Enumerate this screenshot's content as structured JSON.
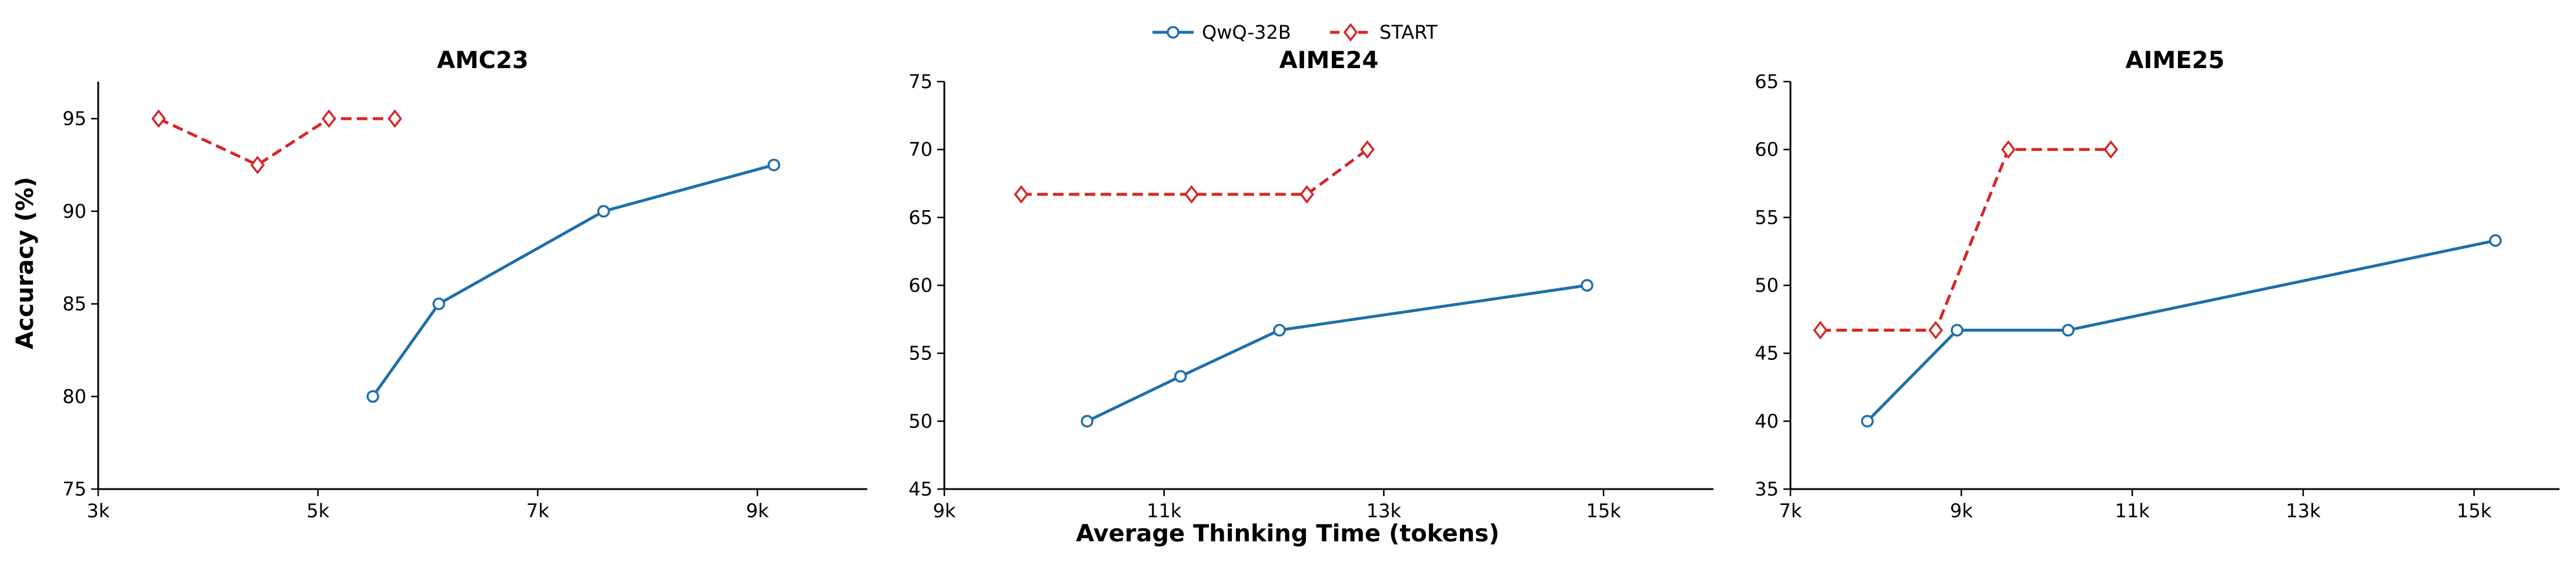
{
  "figure": {
    "ylabel": "Accuracy (%)",
    "xlabel": "Average Thinking Time (tokens)"
  },
  "legend": {
    "placement": "top-center",
    "items": [
      {
        "label": "QwQ-32B",
        "color": "#1f6fa9",
        "marker": "circle",
        "linestyle": "solid"
      },
      {
        "label": "START",
        "color": "#d62728",
        "marker": "diamond",
        "linestyle": "dashed"
      }
    ]
  },
  "chart_data": [
    {
      "type": "line",
      "title": "AMC23",
      "xlim": [
        3000,
        10000
      ],
      "ylim": [
        75,
        97
      ],
      "xticks": [
        3000,
        5000,
        7000,
        9000
      ],
      "xtick_labels": [
        "3k",
        "5k",
        "7k",
        "9k"
      ],
      "yticks": [
        75,
        80,
        85,
        90,
        95
      ],
      "ytick_labels": [
        "75",
        "80",
        "85",
        "90",
        "95"
      ],
      "grid": false,
      "series": [
        {
          "name": "QwQ-32B",
          "x": [
            5500,
            6100,
            7600,
            9150
          ],
          "y": [
            80.0,
            85.0,
            90.0,
            92.5
          ]
        },
        {
          "name": "START",
          "x": [
            3550,
            4450,
            5100,
            5700
          ],
          "y": [
            95.0,
            92.5,
            95.0,
            95.0
          ]
        }
      ]
    },
    {
      "type": "line",
      "title": "AIME24",
      "xlim": [
        9000,
        16000
      ],
      "ylim": [
        45,
        75
      ],
      "xticks": [
        9000,
        11000,
        13000,
        15000
      ],
      "xtick_labels": [
        "9k",
        "11k",
        "13k",
        "15k"
      ],
      "yticks": [
        45,
        50,
        55,
        60,
        65,
        70,
        75
      ],
      "ytick_labels": [
        "45",
        "50",
        "55",
        "60",
        "65",
        "70",
        "75"
      ],
      "grid": false,
      "series": [
        {
          "name": "QwQ-32B",
          "x": [
            10300,
            11150,
            12050,
            14850
          ],
          "y": [
            50.0,
            53.3,
            56.7,
            60.0
          ]
        },
        {
          "name": "START",
          "x": [
            9700,
            11250,
            12300,
            12850
          ],
          "y": [
            66.7,
            66.7,
            66.7,
            70.0
          ]
        }
      ]
    },
    {
      "type": "line",
      "title": "AIME25",
      "xlim": [
        7000,
        16000
      ],
      "ylim": [
        35,
        65
      ],
      "xticks": [
        7000,
        9000,
        11000,
        13000,
        15000
      ],
      "xtick_labels": [
        "7k",
        "9k",
        "11k",
        "13k",
        "15k"
      ],
      "yticks": [
        35,
        40,
        45,
        50,
        55,
        60,
        65
      ],
      "ytick_labels": [
        "35",
        "40",
        "45",
        "50",
        "55",
        "60",
        "65"
      ],
      "grid": false,
      "series": [
        {
          "name": "QwQ-32B",
          "x": [
            7900,
            8950,
            10250,
            15250
          ],
          "y": [
            40.0,
            46.7,
            46.7,
            53.3
          ]
        },
        {
          "name": "START",
          "x": [
            7350,
            8700,
            9550,
            10750
          ],
          "y": [
            46.7,
            46.7,
            60.0,
            60.0
          ]
        }
      ]
    }
  ]
}
